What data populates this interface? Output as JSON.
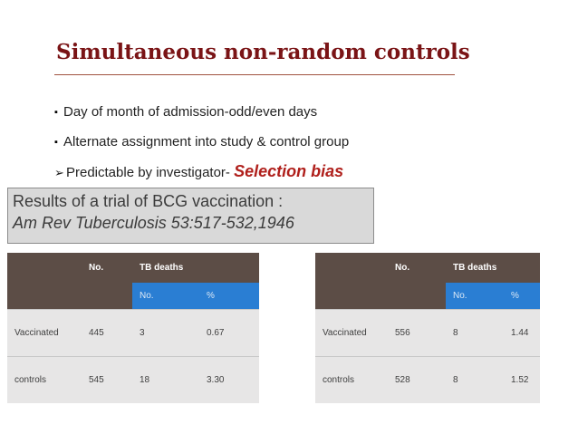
{
  "slide": {
    "title": "Simultaneous non-random controls",
    "bullets": [
      {
        "marker": "▪",
        "text": "Day of month of admission-odd/even days"
      },
      {
        "marker": "▪",
        "text": "Alternate assignment into study & control group"
      }
    ],
    "arrow_bullet": {
      "marker": "➢",
      "text": "Predictable by investigator- ",
      "emphasis": "Selection bias"
    },
    "results": {
      "line1": "Results of a trial of BCG vaccination :",
      "line2": "Am Rev Tuberculosis 53:517-532,1946"
    }
  },
  "tables": [
    {
      "header": {
        "col1": "",
        "col2": "No.",
        "col3": "TB deaths",
        "col4": ""
      },
      "subheader": {
        "col3": "No.",
        "col4": "%"
      },
      "rows": [
        {
          "label": "Vaccinated",
          "no": "445",
          "deaths": "3",
          "pct": "0.67"
        },
        {
          "label": "controls",
          "no": "545",
          "deaths": "18",
          "pct": "3.30"
        }
      ]
    },
    {
      "header": {
        "col1": "",
        "col2": "No.",
        "col3": "TB deaths",
        "col4": ""
      },
      "subheader": {
        "col3": "No.",
        "col4": "%"
      },
      "rows": [
        {
          "label": "Vaccinated",
          "no": "556",
          "deaths": "8",
          "pct": "1.44"
        },
        {
          "label": "controls",
          "no": "528",
          "deaths": "8",
          "pct": "1.52"
        }
      ]
    }
  ]
}
